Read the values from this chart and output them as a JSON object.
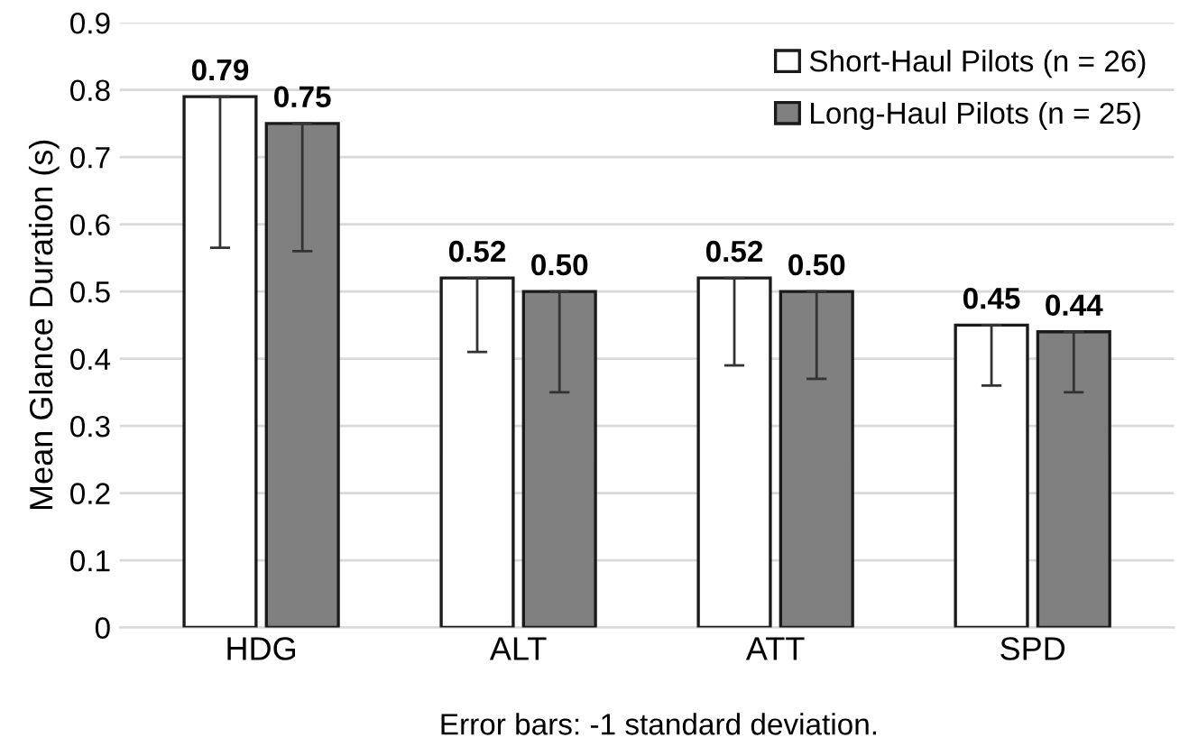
{
  "chart_data": {
    "type": "bar",
    "ylabel": "Mean Glance Duration (s)",
    "categories": [
      "HDG",
      "ALT",
      "ATT",
      "SPD"
    ],
    "series": [
      {
        "name": "Short-Haul Pilots (n = 26)",
        "color": "#ffffff",
        "values": [
          0.79,
          0.52,
          0.52,
          0.45
        ],
        "value_labels": [
          "0.79",
          "0.52",
          "0.52",
          "0.45"
        ],
        "errors": [
          [
            0.565,
            0.79
          ],
          [
            0.41,
            0.52
          ],
          [
            0.39,
            0.52
          ],
          [
            0.36,
            0.45
          ]
        ]
      },
      {
        "name": "Long-Haul Pilots (n = 25)",
        "color": "#808080",
        "values": [
          0.75,
          0.5,
          0.5,
          0.44
        ],
        "value_labels": [
          "0.75",
          "0.50",
          "0.50",
          "0.44"
        ],
        "errors": [
          [
            0.56,
            0.75
          ],
          [
            0.35,
            0.5
          ],
          [
            0.37,
            0.5
          ],
          [
            0.35,
            0.44
          ]
        ]
      }
    ],
    "ylim": [
      0,
      0.9
    ],
    "yticks": [
      0,
      0.1,
      0.2,
      0.3,
      0.4,
      0.5,
      0.6,
      0.7,
      0.8,
      0.9
    ],
    "grid": "y",
    "legend": "top right",
    "annotations": [
      "Error bars: -1 standard deviation."
    ]
  }
}
